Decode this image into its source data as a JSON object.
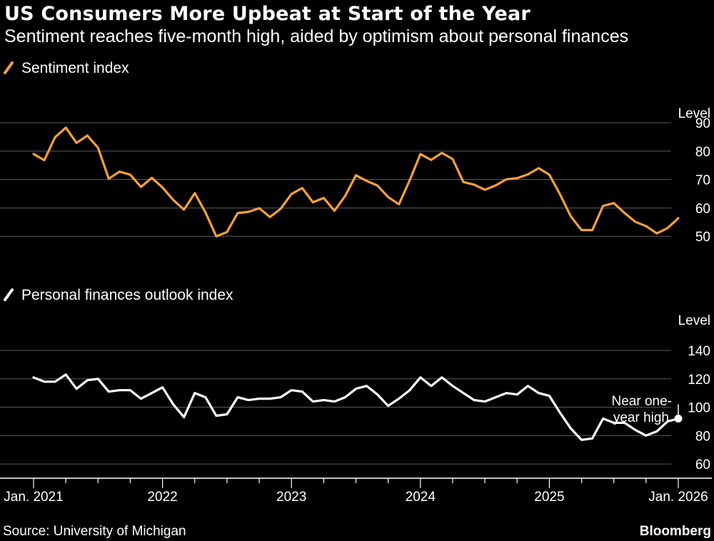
{
  "title": "US Consumers More Upbeat at Start of the Year",
  "subtitle": "Sentiment reaches five-month high, aided by optimism about personal finances",
  "source": "Source: University of Michigan",
  "brand": "Bloomberg",
  "colors": {
    "background": "#000000",
    "sentiment": "#f5a03d",
    "finances": "#ffffff",
    "grid": "#5a5a5a",
    "text": "#ffffff"
  },
  "chart_data": [
    {
      "type": "line",
      "title": "Sentiment index",
      "legend_icon": "slash-orange",
      "ylabel": "Level",
      "ylim": [
        45,
        90
      ],
      "yticks": [
        50,
        60,
        70,
        80,
        90
      ],
      "x_start": "Jan. 2021",
      "x_end": "Jan. 2026",
      "series": [
        {
          "name": "Sentiment index",
          "values": [
            79.0,
            76.8,
            84.9,
            88.3,
            82.9,
            85.5,
            81.2,
            70.3,
            72.8,
            71.7,
            67.4,
            70.6,
            67.2,
            62.8,
            59.4,
            65.2,
            58.4,
            50.0,
            51.5,
            58.2,
            58.6,
            59.9,
            56.8,
            59.7,
            64.9,
            67.0,
            62.0,
            63.5,
            59.0,
            64.2,
            71.5,
            69.5,
            67.9,
            63.8,
            61.3,
            69.7,
            79.0,
            76.9,
            79.4,
            77.2,
            69.1,
            68.2,
            66.4,
            67.9,
            70.1,
            70.5,
            71.8,
            74.0,
            71.7,
            64.7,
            57.0,
            52.2,
            52.2,
            60.7,
            61.7,
            58.2,
            55.1,
            53.6,
            51.0,
            52.9,
            56.4
          ]
        }
      ]
    },
    {
      "type": "line",
      "title": "Personal finances outlook index",
      "legend_icon": "slash-white",
      "ylabel": "Level",
      "ylim": [
        50,
        140
      ],
      "yticks": [
        60,
        80,
        100,
        120,
        140
      ],
      "x_start": "Jan. 2021",
      "x_end": "Jan. 2026",
      "annotation": "Near one-year high",
      "annotation_lines": [
        "Near one-",
        "year high"
      ],
      "series": [
        {
          "name": "Personal finances outlook index",
          "values": [
            121,
            118,
            118,
            123,
            113,
            119,
            120,
            111,
            112,
            112,
            106,
            110,
            114,
            102,
            93,
            110,
            107,
            94,
            95,
            107,
            105,
            106,
            106,
            107,
            112,
            111,
            104,
            105,
            104,
            107,
            113,
            115,
            109,
            101,
            106,
            112,
            121,
            115,
            121,
            115,
            110,
            105,
            104,
            107,
            110,
            109,
            115,
            110,
            108,
            96,
            85,
            77,
            78,
            92,
            89,
            89,
            84,
            80,
            83,
            90,
            92
          ]
        }
      ]
    }
  ],
  "x_axis": {
    "labels": [
      "Jan. 2021",
      "2022",
      "2023",
      "2024",
      "2025",
      "Jan. 2026"
    ]
  }
}
